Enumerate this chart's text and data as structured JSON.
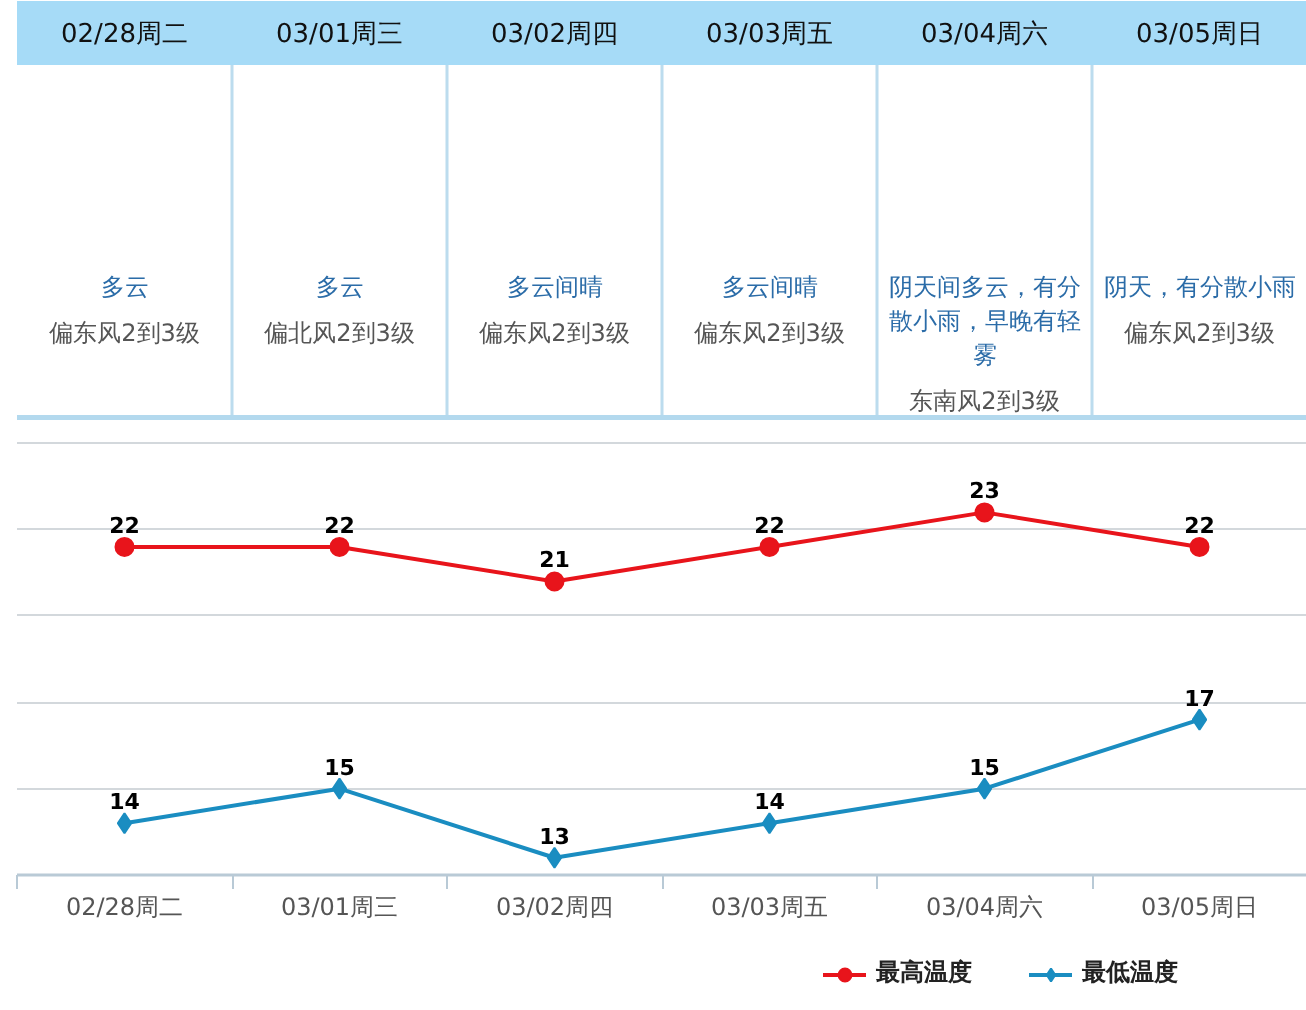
{
  "chart_data": [
    {
      "type": "other",
      "categories": [
        "02/28周二",
        "03/01周三",
        "03/02周四",
        "03/03周五",
        "03/04周六",
        "03/05周日"
      ],
      "annotations": [
        "多云",
        "偏东风2到3级",
        "多云",
        "偏北风2到3级",
        "多云间晴",
        "偏东风2到3级",
        "多云间晴",
        "偏东风2到3级",
        "阴天间多云，有分散小雨，早晚有轻雾",
        "东南风2到3级",
        "阴天，有分散小雨",
        "偏东风2到3级"
      ]
    },
    {
      "type": "line",
      "categories": [
        "02/28周二",
        "03/01周三",
        "03/02周四",
        "03/03周五",
        "03/04周六",
        "03/05周日"
      ],
      "series": [
        {
          "name": "最高温度",
          "color": "#e8141b",
          "marker": "circle",
          "values": [
            22,
            22,
            21,
            22,
            23,
            22
          ]
        },
        {
          "name": "最低温度",
          "color": "#1a8dc1",
          "marker": "diamond",
          "values": [
            14,
            15,
            13,
            14,
            15,
            17
          ]
        }
      ],
      "yticks": [
        {
          "value": 12.5,
          "label": null
        },
        {
          "value": 15,
          "label": null
        },
        {
          "value": 17.5,
          "label": null
        },
        {
          "value": 20,
          "label": null
        },
        {
          "value": 22.5,
          "label": null
        },
        {
          "value": 25,
          "label": null
        }
      ],
      "grid": "y",
      "tick_labels": "x",
      "data_labels": true,
      "legend": "bottom right"
    }
  ]
}
